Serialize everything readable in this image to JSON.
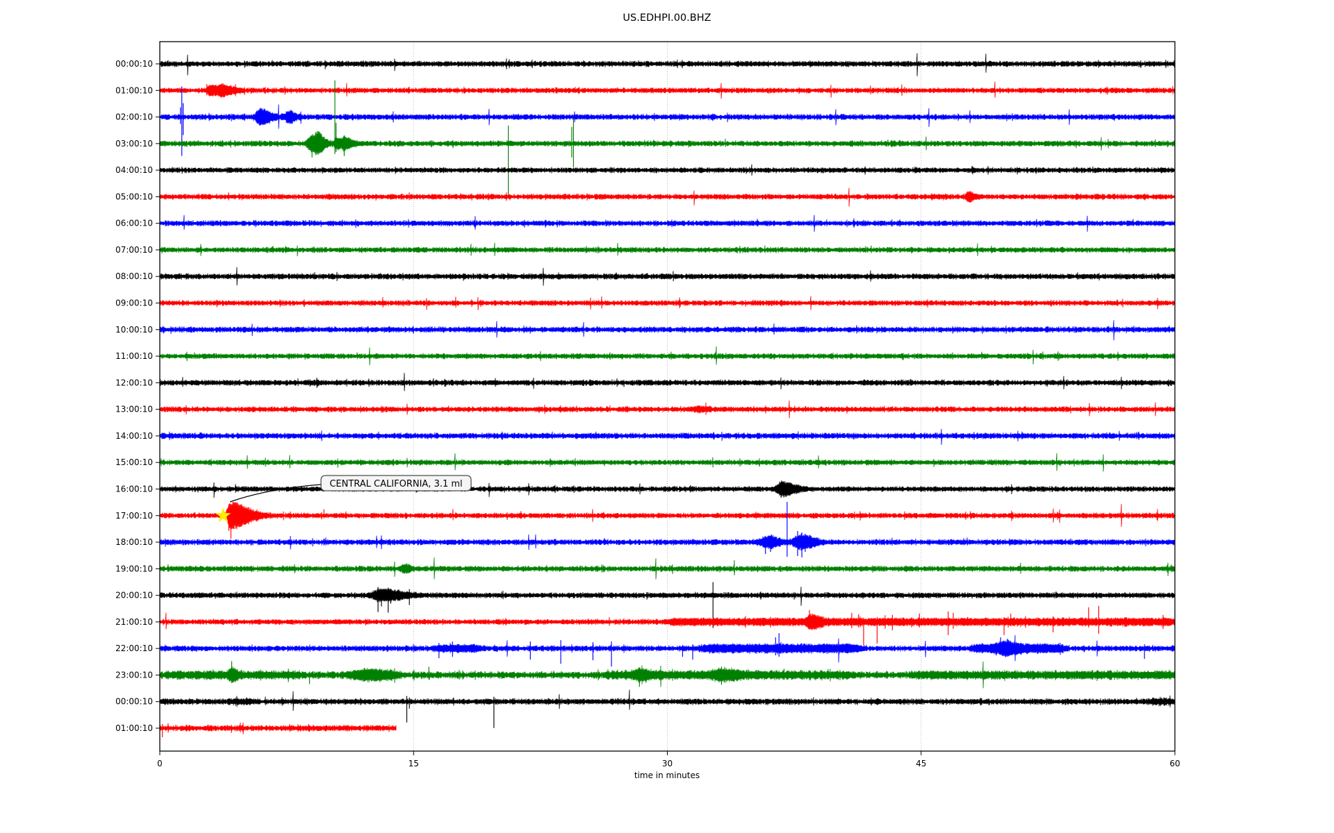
{
  "title": "US.EDHPI.00.BHZ",
  "xlabel": "time in minutes",
  "annotation": {
    "text": "CENTRAL CALIFORNIA, 3.1 ml",
    "row_label": "17:00:10",
    "minute": 3.75,
    "star_color": "#ffee00",
    "box_fill": "#f5f5f5",
    "box_border": "#4d4d4d"
  },
  "chart_data": {
    "type": "seismogram-dayplot",
    "title": "US.EDHPI.00.BHZ",
    "xlabel": "time in minutes",
    "x_range_minutes": [
      0,
      60
    ],
    "x_ticks": [
      0,
      15,
      30,
      45,
      60
    ],
    "gridlines_minutes": [
      15,
      30,
      45
    ],
    "grid_color": "#b0b0b0",
    "frame_color": "#000000",
    "trace_color_cycle": [
      "#000000",
      "#ff0000",
      "#0000ff",
      "#008000"
    ],
    "rows": [
      {
        "label": "00:00:10",
        "color": "#000000",
        "amp": 3.4,
        "bursts": [],
        "bands": [],
        "spikes": []
      },
      {
        "label": "01:00:10",
        "color": "#ff0000",
        "amp": 3.2,
        "bursts": [
          [
            3.0,
            0.15,
            0.2,
            5
          ],
          [
            3.6,
            0.25,
            0.6,
            6
          ]
        ],
        "bands": [],
        "spikes": [
          [
            2.78,
            9,
            7
          ]
        ]
      },
      {
        "label": "02:00:10",
        "color": "#0000ff",
        "amp": 3.4,
        "bursts": [
          [
            5.95,
            0.2,
            0.5,
            9
          ],
          [
            7.62,
            0.15,
            0.35,
            6
          ]
        ],
        "bands": [],
        "spikes": [
          [
            1.22,
            14,
            10
          ],
          [
            1.3,
            44,
            56
          ],
          [
            1.38,
            20,
            26
          ]
        ]
      },
      {
        "label": "03:00:10",
        "color": "#008000",
        "amp": 3.4,
        "bursts": [
          [
            9.0,
            0.2,
            0.5,
            9
          ],
          [
            9.3,
            0.1,
            0.3,
            6
          ],
          [
            10.4,
            0.05,
            0.3,
            6
          ],
          [
            10.9,
            0.1,
            0.4,
            6
          ]
        ],
        "bands": [],
        "spikes": [
          [
            9.0,
            10,
            20
          ],
          [
            10.35,
            91,
            15
          ],
          [
            10.42,
            30,
            12
          ],
          [
            10.9,
            12,
            18
          ],
          [
            20.6,
            26,
            78
          ],
          [
            24.35,
            24,
            20
          ],
          [
            24.45,
            36,
            34
          ]
        ]
      },
      {
        "label": "04:00:10",
        "color": "#000000",
        "amp": 3.2,
        "bursts": [],
        "bands": [],
        "spikes": []
      },
      {
        "label": "05:00:10",
        "color": "#ff0000",
        "amp": 3.3,
        "bursts": [
          [
            47.8,
            0.1,
            0.25,
            5
          ]
        ],
        "bands": [],
        "spikes": []
      },
      {
        "label": "06:00:10",
        "color": "#0000ff",
        "amp": 3.3,
        "bursts": [],
        "bands": [],
        "spikes": []
      },
      {
        "label": "07:00:10",
        "color": "#008000",
        "amp": 3.2,
        "bursts": [],
        "bands": [],
        "spikes": []
      },
      {
        "label": "08:00:10",
        "color": "#000000",
        "amp": 3.4,
        "bursts": [],
        "bands": [],
        "spikes": []
      },
      {
        "label": "09:00:10",
        "color": "#ff0000",
        "amp": 3.2,
        "bursts": [],
        "bands": [],
        "spikes": []
      },
      {
        "label": "10:00:10",
        "color": "#0000ff",
        "amp": 3.4,
        "bursts": [],
        "bands": [],
        "spikes": []
      },
      {
        "label": "11:00:10",
        "color": "#008000",
        "amp": 3.2,
        "bursts": [],
        "bands": [],
        "spikes": []
      },
      {
        "label": "12:00:10",
        "color": "#000000",
        "amp": 3.4,
        "bursts": [],
        "bands": [],
        "spikes": []
      },
      {
        "label": "13:00:10",
        "color": "#ff0000",
        "amp": 3.2,
        "bursts": [
          [
            31.9,
            0.3,
            0.5,
            2
          ]
        ],
        "bands": [],
        "spikes": []
      },
      {
        "label": "14:00:10",
        "color": "#0000ff",
        "amp": 3.5,
        "bursts": [],
        "bands": [],
        "spikes": []
      },
      {
        "label": "15:00:10",
        "color": "#008000",
        "amp": 3.2,
        "bursts": [],
        "bands": [],
        "spikes": []
      },
      {
        "label": "16:00:10",
        "color": "#000000",
        "amp": 3.2,
        "bursts": [
          [
            36.8,
            0.25,
            0.6,
            8
          ]
        ],
        "bands": [],
        "spikes": [
          [
            36.75,
            12,
            11
          ],
          [
            36.85,
            10,
            9
          ]
        ]
      },
      {
        "label": "17:00:10",
        "color": "#ff0000",
        "amp": 3.2,
        "bursts": [
          [
            4.15,
            0.12,
            0.9,
            16
          ]
        ],
        "bands": [],
        "spikes": [
          [
            4.08,
            16,
            22
          ],
          [
            4.2,
            14,
            33
          ],
          [
            4.38,
            12,
            15
          ],
          [
            9.7,
            9,
            4
          ]
        ]
      },
      {
        "label": "18:00:10",
        "color": "#0000ff",
        "amp": 3.4,
        "bursts": [
          [
            36.0,
            0.4,
            0.5,
            6
          ],
          [
            37.9,
            0.3,
            0.6,
            8
          ]
        ],
        "bands": [],
        "spikes": [
          [
            35.8,
            8,
            17
          ],
          [
            36.1,
            9,
            14
          ],
          [
            37.08,
            58,
            21
          ],
          [
            37.7,
            16,
            20
          ],
          [
            37.95,
            14,
            22
          ],
          [
            38.15,
            12,
            14
          ]
        ]
      },
      {
        "label": "19:00:10",
        "color": "#008000",
        "amp": 3.3,
        "bursts": [
          [
            14.45,
            0.15,
            0.3,
            4
          ]
        ],
        "bands": [],
        "spikes": []
      },
      {
        "label": "20:00:10",
        "color": "#000000",
        "amp": 3.3,
        "bursts": [
          [
            13.0,
            0.3,
            1.2,
            6
          ]
        ],
        "bands": [],
        "spikes": [
          [
            12.9,
            12,
            24
          ],
          [
            13.1,
            9,
            16
          ],
          [
            13.5,
            11,
            25
          ],
          [
            13.65,
            8,
            12
          ],
          [
            14.75,
            9,
            14
          ],
          [
            32.7,
            19,
            47
          ]
        ]
      },
      {
        "label": "21:00:10",
        "color": "#ff0000",
        "amp": 3.2,
        "bursts": [
          [
            38.5,
            0.2,
            0.4,
            6
          ]
        ],
        "bands": [
          [
            30,
            60,
            2.3
          ]
        ],
        "spikes": [
          [
            38.4,
            17,
            8
          ],
          [
            40.9,
            13,
            9
          ],
          [
            41.3,
            11,
            8
          ],
          [
            41.6,
            6,
            34
          ],
          [
            42.4,
            7,
            31
          ],
          [
            43.3,
            10,
            12
          ],
          [
            44.9,
            12,
            8
          ],
          [
            46.6,
            15,
            19
          ],
          [
            46.9,
            13,
            10
          ],
          [
            49.9,
            7,
            19
          ],
          [
            50.3,
            12,
            6
          ],
          [
            52.8,
            8,
            15
          ],
          [
            54.9,
            21,
            8
          ],
          [
            55.5,
            23,
            17
          ],
          [
            59.3,
            10,
            10
          ]
        ]
      },
      {
        "label": "22:00:10",
        "color": "#0000ff",
        "amp": 3.4,
        "bursts": [
          [
            50.0,
            0.3,
            0.5,
            5
          ]
        ],
        "bands": [
          [
            16.2,
            19.0,
            2.5
          ],
          [
            32.0,
            41.5,
            3.0
          ],
          [
            48.0,
            53.5,
            3.2
          ]
        ],
        "spikes": [
          [
            16.5,
            8,
            14
          ],
          [
            17.3,
            10,
            12
          ],
          [
            21.9,
            10,
            16
          ],
          [
            23.7,
            12,
            22
          ],
          [
            25.6,
            9,
            17
          ],
          [
            26.7,
            10,
            26
          ],
          [
            30.9,
            5,
            12
          ],
          [
            31.5,
            6,
            16
          ],
          [
            36.4,
            16,
            10
          ],
          [
            36.6,
            22,
            12
          ],
          [
            49.7,
            16,
            7
          ],
          [
            50.1,
            14,
            8
          ],
          [
            58.2,
            6,
            15
          ]
        ]
      },
      {
        "label": "23:00:10",
        "color": "#008000",
        "amp": 4.2,
        "bursts": [
          [
            4.2,
            0.1,
            0.3,
            5
          ],
          [
            12.3,
            0.5,
            1.0,
            3
          ],
          [
            28.4,
            0.3,
            0.5,
            4
          ],
          [
            33.2,
            0.4,
            0.8,
            4
          ]
        ],
        "bands": [
          [
            0.3,
            8.5,
            1.5
          ],
          [
            11.0,
            14.0,
            2.0
          ],
          [
            26.5,
            41.0,
            1.8
          ],
          [
            44.5,
            60,
            1.6
          ]
        ],
        "spikes": [
          [
            3.15,
            8,
            6
          ],
          [
            4.25,
            20,
            8
          ],
          [
            7.6,
            9,
            10
          ],
          [
            8.85,
            5,
            13
          ],
          [
            15.9,
            12,
            6
          ],
          [
            28.35,
            8,
            17
          ],
          [
            33.2,
            12,
            14
          ],
          [
            36.9,
            9,
            7
          ]
        ]
      },
      {
        "label": "00:00:10",
        "color": "#000000",
        "amp": 3.6,
        "bursts": [],
        "bands": [
          [
            4.3,
            5.6,
            1.5
          ],
          [
            58.5,
            60,
            1.5
          ]
        ],
        "spikes": [
          [
            14.6,
            8,
            30
          ],
          [
            14.75,
            6,
            10
          ],
          [
            19.75,
            7,
            38
          ]
        ]
      },
      {
        "label": "01:00:10",
        "color": "#ff0000",
        "amp": 3.6,
        "end_minute": 14.0,
        "bursts": [],
        "bands": [],
        "spikes": [
          [
            0.15,
            6,
            13
          ]
        ]
      }
    ]
  }
}
